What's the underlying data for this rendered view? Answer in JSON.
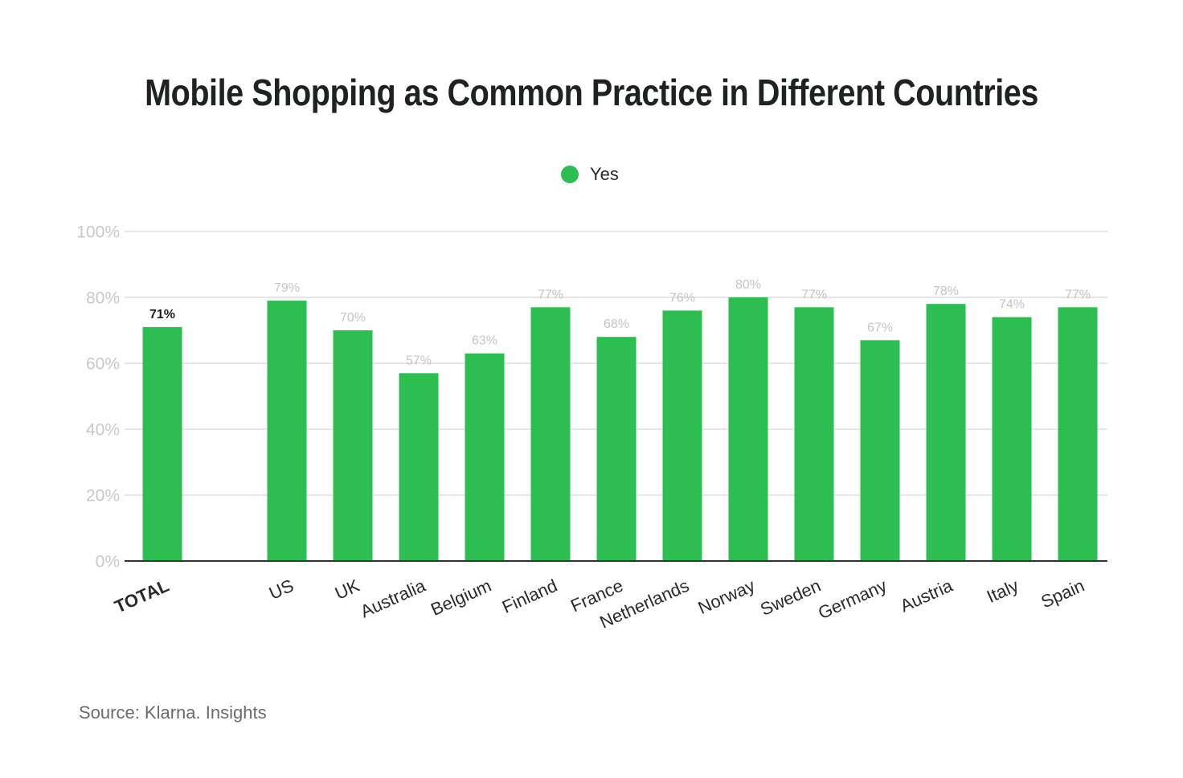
{
  "chart_data": {
    "type": "bar",
    "title": "Mobile Shopping as Common Practice in Different Countries",
    "xlabel": "",
    "ylabel": "",
    "ylim": [
      0,
      100
    ],
    "yticks": [
      "0%",
      "20%",
      "40%",
      "60%",
      "80%",
      "100%"
    ],
    "ytick_values": [
      0,
      20,
      40,
      60,
      80,
      100
    ],
    "grid": true,
    "legend_position": "top-center",
    "categories": [
      "TOTAL",
      "US",
      "UK",
      "Australia",
      "Belgium",
      "Finland",
      "France",
      "Netherlands",
      "Norway",
      "Sweden",
      "Germany",
      "Austria",
      "Italy",
      "Spain"
    ],
    "series": [
      {
        "name": "Yes",
        "values": [
          71,
          79,
          70,
          57,
          63,
          77,
          68,
          76,
          80,
          77,
          67,
          78,
          74,
          77
        ],
        "labels": [
          "71%",
          "79%",
          "70%",
          "57%",
          "63%",
          "77%",
          "68%",
          "76%",
          "80%",
          "77%",
          "67%",
          "78%",
          "74%",
          "77%"
        ],
        "color": "#2dbe52"
      }
    ],
    "highlight_category": "TOTAL",
    "source": "Source: Klarna. Insights"
  },
  "colors": {
    "bar": "#2dbe52",
    "grid": "#dedede",
    "axis": "#333333",
    "tick_text": "#c8c8c8",
    "value_text": "#c4c4c4",
    "title": "#1e2220"
  }
}
